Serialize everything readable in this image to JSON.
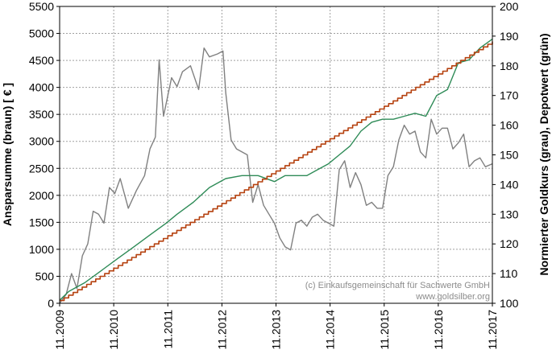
{
  "chart_data": {
    "type": "line",
    "ylabel_left": "Ansparsumme (braun) [ € ]",
    "ylabel_right": "Normierter Goldkurs (grau), Depotwert (grün)",
    "ylim_left": [
      0,
      5500
    ],
    "ylim_right": [
      100,
      200
    ],
    "yticks_left": [
      0,
      500,
      1000,
      1500,
      2000,
      2500,
      3000,
      3500,
      4000,
      4500,
      5000,
      5500
    ],
    "yticks_right": [
      100,
      110,
      120,
      130,
      140,
      150,
      160,
      170,
      180,
      190,
      200
    ],
    "xticks": [
      {
        "value": 2009.83,
        "label": "11.2009"
      },
      {
        "value": 2010.83,
        "label": "11.2010"
      },
      {
        "value": 2011.83,
        "label": "11.2011"
      },
      {
        "value": 2012.83,
        "label": "11.2012"
      },
      {
        "value": 2013.83,
        "label": "11.2013"
      },
      {
        "value": 2014.83,
        "label": "11.2014"
      },
      {
        "value": 2015.83,
        "label": "11.2015"
      },
      {
        "value": 2016.83,
        "label": "11.2016"
      },
      {
        "value": 2017.83,
        "label": "11.2017"
      }
    ],
    "xlim": [
      2009.83,
      2017.83
    ],
    "grid": true,
    "credit": [
      "(c) Einkaufsgemeinschaft für Sachwerte GmbH",
      "www.goldsilber.org"
    ],
    "colors": {
      "gold": "#808080",
      "depot": "#2e8b57",
      "savings": "#b5410f",
      "grid": "#a0a0a0"
    },
    "series": [
      {
        "name": "Ansparsumme (braun)",
        "axis": "left",
        "color": "#b5410f",
        "step": true,
        "x": [
          2009.83,
          2017.83
        ],
        "y": [
          50,
          4850
        ]
      },
      {
        "name": "Normierter Goldkurs (grau)",
        "axis": "right",
        "color": "#808080",
        "x": [
          2009.83,
          2009.95,
          2010.05,
          2010.15,
          2010.25,
          2010.35,
          2010.45,
          2010.55,
          2010.65,
          2010.75,
          2010.85,
          2010.95,
          2011.1,
          2011.25,
          2011.4,
          2011.5,
          2011.6,
          2011.67,
          2011.75,
          2011.9,
          2012.0,
          2012.1,
          2012.25,
          2012.4,
          2012.5,
          2012.6,
          2012.75,
          2012.85,
          2012.9,
          2013.0,
          2013.1,
          2013.3,
          2013.4,
          2013.5,
          2013.6,
          2013.7,
          2013.8,
          2013.9,
          2014.0,
          2014.1,
          2014.2,
          2014.3,
          2014.4,
          2014.5,
          2014.6,
          2014.7,
          2014.8,
          2014.9,
          2015.0,
          2015.1,
          2015.2,
          2015.3,
          2015.4,
          2015.5,
          2015.6,
          2015.7,
          2015.8,
          2015.9,
          2016.0,
          2016.1,
          2016.2,
          2016.3,
          2016.4,
          2016.5,
          2016.6,
          2016.7,
          2016.8,
          2016.9,
          2017.0,
          2017.1,
          2017.2,
          2017.3,
          2017.4,
          2017.5,
          2017.6,
          2017.7,
          2017.83
        ],
        "y": [
          100,
          103,
          110,
          105,
          116,
          120,
          131,
          130,
          127,
          139,
          137,
          142,
          132,
          138,
          143,
          152,
          156,
          182,
          163,
          176,
          173,
          178,
          180,
          172,
          186,
          183,
          184,
          185,
          171,
          155,
          152,
          150,
          134,
          140,
          133,
          130,
          127,
          122,
          119,
          118,
          127,
          128,
          126,
          129,
          130,
          128,
          127,
          126,
          145,
          148,
          139,
          144,
          140,
          133,
          134,
          132,
          132,
          143,
          146,
          155,
          160,
          157,
          158,
          151,
          149,
          162,
          157,
          159,
          159,
          152,
          154,
          157,
          146,
          148,
          149,
          146,
          147
        ]
      },
      {
        "name": "Depotwert (grün)",
        "axis": "right",
        "color": "#2e8b57",
        "x": [
          2009.83,
          2010.0,
          2010.3,
          2010.6,
          2010.9,
          2011.2,
          2011.5,
          2011.8,
          2012.0,
          2012.3,
          2012.6,
          2012.9,
          2013.2,
          2013.5,
          2013.8,
          2014.0,
          2014.2,
          2014.4,
          2014.6,
          2014.8,
          2015.0,
          2015.2,
          2015.4,
          2015.6,
          2015.8,
          2016.0,
          2016.2,
          2016.4,
          2016.6,
          2016.8,
          2017.0,
          2017.2,
          2017.4,
          2017.6,
          2017.83
        ],
        "y": [
          101,
          104,
          107,
          111,
          115,
          119,
          123,
          127,
          130,
          134,
          139,
          142,
          143,
          143,
          141,
          143,
          143,
          143,
          145,
          147,
          150,
          153,
          158,
          161,
          162,
          162,
          163,
          164,
          163,
          170,
          172,
          181,
          182,
          186,
          189
        ]
      }
    ]
  }
}
